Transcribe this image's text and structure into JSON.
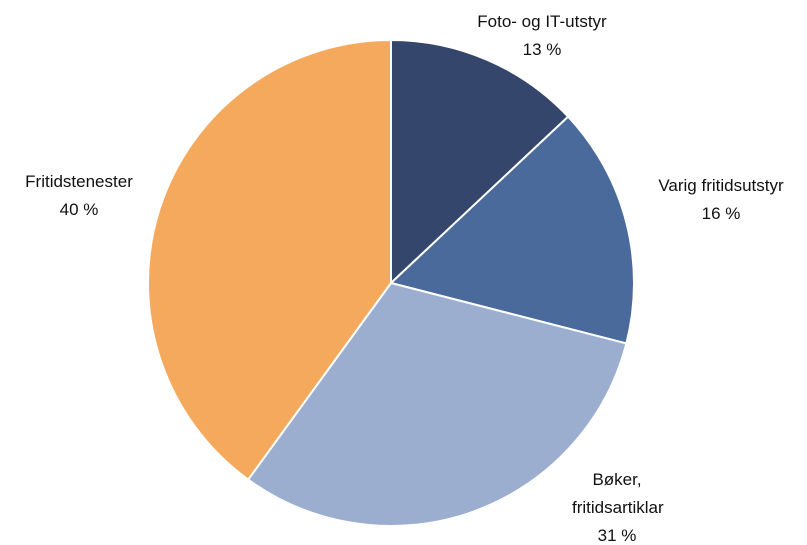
{
  "chart_data": {
    "type": "pie",
    "categories": [
      "Foto- og IT-utstyr",
      "Varig fritidsutstyr",
      "Bøker, fritidsartiklar",
      "Fritidstenester"
    ],
    "values": [
      13,
      16,
      31,
      40
    ],
    "value_labels": [
      "13 %",
      "16 %",
      "31 %",
      "40 %"
    ],
    "colors": [
      "#34466b",
      "#4a6a9c",
      "#9baed0",
      "#f5a95c"
    ]
  }
}
